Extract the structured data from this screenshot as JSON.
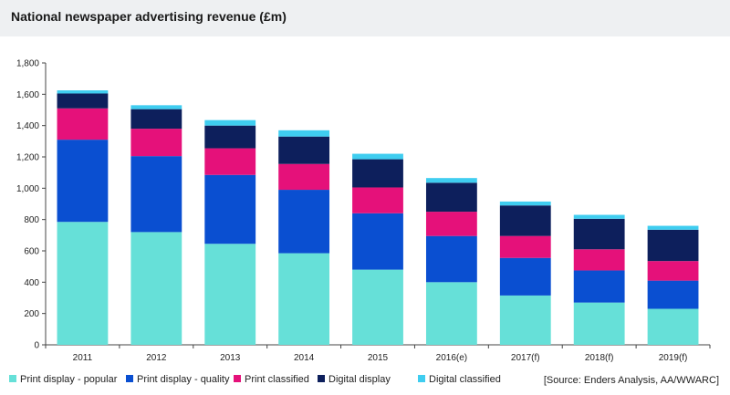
{
  "title": "National newspaper advertising revenue (£m)",
  "source": "[Source: Enders Analysis, AA/WWARC]",
  "chart_data": {
    "type": "bar",
    "stacked": true,
    "title": "National newspaper advertising revenue (£m)",
    "xlabel": "",
    "ylabel": "",
    "ylim": [
      0,
      1800
    ],
    "yticks": [
      0,
      200,
      400,
      600,
      800,
      1000,
      1200,
      1400,
      1600,
      1800
    ],
    "ytick_labels": [
      "0",
      "200",
      "400",
      "600",
      "800",
      "1,000",
      "1,200",
      "1,400",
      "1,600",
      "1,800"
    ],
    "categories": [
      "2011",
      "2012",
      "2013",
      "2014",
      "2015",
      "2016(e)",
      "2017(f)",
      "2018(f)",
      "2019(f)"
    ],
    "series": [
      {
        "name": "Print display - popular",
        "color": "#66e0d8",
        "values": [
          785,
          720,
          645,
          585,
          480,
          400,
          315,
          270,
          230
        ]
      },
      {
        "name": "Print display - quality",
        "color": "#0a4fd1",
        "values": [
          525,
          485,
          440,
          405,
          360,
          295,
          240,
          205,
          180
        ]
      },
      {
        "name": "Print classified",
        "color": "#e5117a",
        "values": [
          200,
          175,
          170,
          165,
          165,
          155,
          140,
          135,
          125
        ]
      },
      {
        "name": "Digital display",
        "color": "#0d1f5c",
        "values": [
          95,
          125,
          145,
          175,
          180,
          185,
          195,
          195,
          200
        ]
      },
      {
        "name": "Digital classified",
        "color": "#3fcdf0",
        "values": [
          20,
          25,
          35,
          40,
          35,
          30,
          25,
          25,
          25
        ]
      }
    ],
    "grid": false,
    "legend_position": "bottom"
  }
}
